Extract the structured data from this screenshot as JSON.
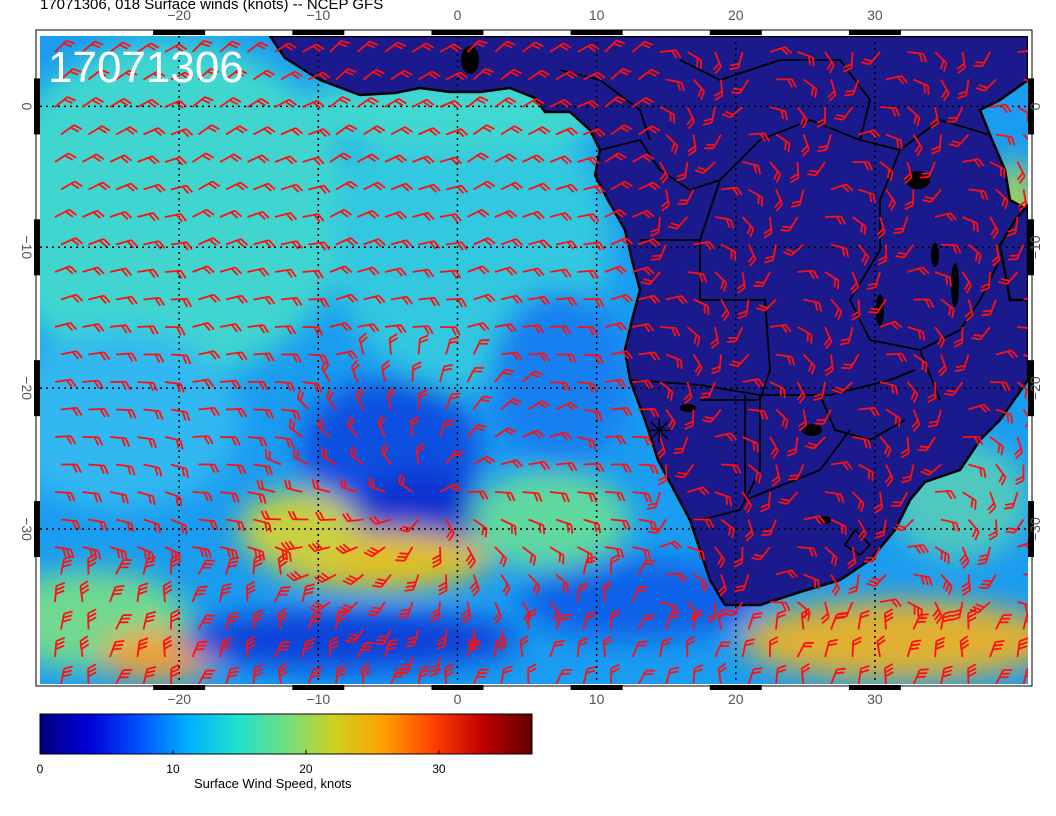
{
  "title": "17071306, 018 Surface winds (knots) -- NCEP GFS",
  "stamp": "17071306",
  "map": {
    "lon_min": -30,
    "lon_max": 41,
    "lat_min": -41,
    "lat_max": 5,
    "lon_ticks": [
      -20,
      -10,
      0,
      10,
      20,
      30
    ],
    "lon_tick_labels": [
      "−20",
      "−10",
      "0",
      "10",
      "20",
      "30"
    ],
    "lat_ticks": [
      0,
      -10,
      -20,
      -30
    ],
    "lat_tick_labels": [
      "0",
      "−10",
      "−20",
      "−30"
    ],
    "land_color": "#1a1a8c",
    "coast_color": "#000000",
    "barb_color": "#ff1010",
    "marker": {
      "lon": 14.5,
      "lat": -23,
      "symbol": "star"
    }
  },
  "colorbar": {
    "label": "Surface Wind Speed, knots",
    "min": 0,
    "max": 37,
    "ticks": [
      0,
      10,
      20,
      30
    ],
    "tick_labels": [
      "0",
      "10",
      "20",
      "30"
    ],
    "stops": [
      "#00007f",
      "#0000d8",
      "#0050ff",
      "#00b0ff",
      "#20e0d0",
      "#70e080",
      "#d0d020",
      "#ffa000",
      "#ff4000",
      "#c00000",
      "#600000"
    ]
  }
}
